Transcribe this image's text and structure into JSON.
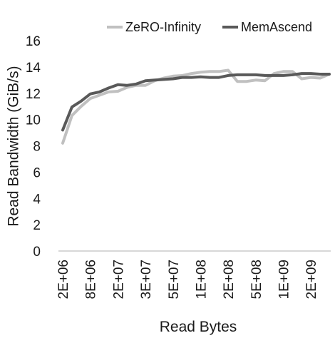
{
  "chart_data": {
    "type": "line",
    "title": "",
    "xlabel": "Read Bytes",
    "ylabel": "Read Bandwidth (GiB/s)",
    "ylim": [
      0,
      16
    ],
    "y_ticks": [
      0,
      2,
      4,
      6,
      8,
      10,
      12,
      14,
      16
    ],
    "x_tick_labels": [
      "2E+06",
      "8E+06",
      "2E+07",
      "3E+07",
      "5E+07",
      "1E+08",
      "2E+08",
      "5E+08",
      "1E+09",
      "2E+09"
    ],
    "x_tick_index": [
      0,
      3,
      6,
      9,
      12,
      15,
      18,
      21,
      24,
      27
    ],
    "grid": false,
    "legend_position": "top-right",
    "series": [
      {
        "name": "ZeRO-Infinity",
        "color": "#c0c0c0",
        "values": [
          8.2,
          10.3,
          11.0,
          11.6,
          11.85,
          12.1,
          12.15,
          12.45,
          12.6,
          12.6,
          12.95,
          13.15,
          13.3,
          13.35,
          13.5,
          13.6,
          13.65,
          13.65,
          13.75,
          12.9,
          12.9,
          13.0,
          12.95,
          13.5,
          13.65,
          13.65,
          13.1,
          13.2,
          13.15,
          13.45
        ]
      },
      {
        "name": "MemAscend",
        "color": "#595959",
        "values": [
          9.2,
          10.95,
          11.4,
          11.95,
          12.1,
          12.4,
          12.65,
          12.6,
          12.7,
          12.95,
          13.0,
          13.05,
          13.1,
          13.2,
          13.2,
          13.25,
          13.2,
          13.2,
          13.35,
          13.4,
          13.4,
          13.4,
          13.35,
          13.35,
          13.35,
          13.4,
          13.5,
          13.5,
          13.45,
          13.45
        ]
      }
    ]
  }
}
